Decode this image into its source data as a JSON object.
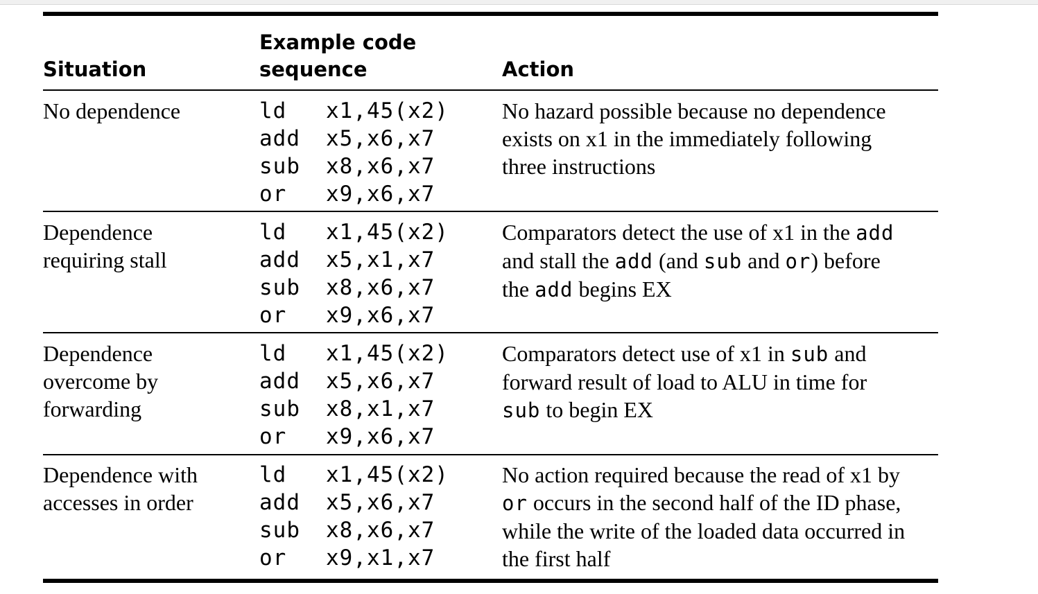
{
  "headers": {
    "situation": "Situation",
    "code_line1": "Example code",
    "code_line2": "sequence",
    "action": "Action"
  },
  "rows": [
    {
      "situation": [
        "No dependence"
      ],
      "code": [
        [
          "ld",
          "x1,45(x2)"
        ],
        [
          "add",
          "x5,x6,x7"
        ],
        [
          "sub",
          "x8,x6,x7"
        ],
        [
          "or",
          "x9,x6,x7"
        ]
      ],
      "action": [
        [
          {
            "t": "No hazard possible because no dependence"
          }
        ],
        [
          {
            "t": "exists on x1 in the immediately following"
          }
        ],
        [
          {
            "t": "three instructions"
          }
        ]
      ]
    },
    {
      "situation": [
        "Dependence",
        "requiring stall"
      ],
      "code": [
        [
          "ld",
          "x1,45(x2)"
        ],
        [
          "add",
          "x5,x1,x7"
        ],
        [
          "sub",
          "x8,x6,x7"
        ],
        [
          "or",
          "x9,x6,x7"
        ]
      ],
      "action": [
        [
          {
            "t": "Comparators detect the use of x1 in the "
          },
          {
            "t": "add",
            "m": true
          }
        ],
        [
          {
            "t": "and stall the "
          },
          {
            "t": "add",
            "m": true
          },
          {
            "t": " (and "
          },
          {
            "t": "sub",
            "m": true
          },
          {
            "t": " and "
          },
          {
            "t": "or",
            "m": true
          },
          {
            "t": ") before"
          }
        ],
        [
          {
            "t": "the "
          },
          {
            "t": "add",
            "m": true
          },
          {
            "t": " begins EX"
          }
        ]
      ]
    },
    {
      "situation": [
        "Dependence",
        "overcome by",
        "forwarding"
      ],
      "code": [
        [
          "ld",
          "x1,45(x2)"
        ],
        [
          "add",
          "x5,x6,x7"
        ],
        [
          "sub",
          "x8,x1,x7"
        ],
        [
          "or",
          "x9,x6,x7"
        ]
      ],
      "action": [
        [
          {
            "t": "Comparators detect use of x1 in "
          },
          {
            "t": "sub",
            "m": true
          },
          {
            "t": " and"
          }
        ],
        [
          {
            "t": "forward result of load to ALU in time for"
          }
        ],
        [
          {
            "t": "sub",
            "m": true
          },
          {
            "t": " to begin EX"
          }
        ]
      ]
    },
    {
      "situation": [
        "Dependence with",
        "accesses in order"
      ],
      "code": [
        [
          "ld",
          "x1,45(x2)"
        ],
        [
          "add",
          "x5,x6,x7"
        ],
        [
          "sub",
          "x8,x6,x7"
        ],
        [
          "or",
          "x9,x1,x7"
        ]
      ],
      "action": [
        [
          {
            "t": "No action required because the read of x1 by"
          }
        ],
        [
          {
            "t": "or",
            "m": true
          },
          {
            "t": " occurs in the second half of the ID phase,"
          }
        ],
        [
          {
            "t": "while the write of the loaded data occurred in"
          }
        ],
        [
          {
            "t": "the first half"
          }
        ]
      ]
    }
  ]
}
